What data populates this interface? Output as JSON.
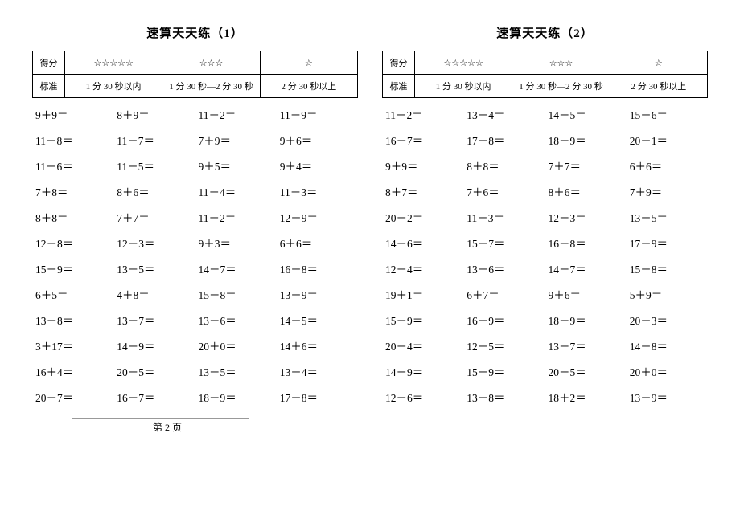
{
  "left": {
    "title_prefix": "速算天天练（",
    "title_num": "1",
    "title_suffix": "）",
    "header": {
      "row1_label": "得分",
      "row1_c1": "☆☆☆☆☆",
      "row1_c2": "☆☆☆",
      "row1_c3": "☆",
      "row2_label": "标准",
      "row2_c1": "1 分 30 秒以内",
      "row2_c2": "1 分 30 秒—2 分 30 秒",
      "row2_c3": "2 分 30 秒以上"
    },
    "rows": [
      [
        "9＋9＝",
        "8＋9＝",
        "11－2＝",
        "11－9＝"
      ],
      [
        "11－8＝",
        "11－7＝",
        "7＋9＝",
        "9＋6＝"
      ],
      [
        "11－6＝",
        "11－5＝",
        "9＋5＝",
        "9＋4＝"
      ],
      [
        "7＋8＝",
        "8＋6＝",
        "11－4＝",
        "11－3＝"
      ],
      [
        "8＋8＝",
        "7＋7＝",
        "11－2＝",
        "12－9＝"
      ],
      [
        "12－8＝",
        "12－3＝",
        "9＋3＝",
        "6＋6＝"
      ],
      [
        "15－9＝",
        "13－5＝",
        "14－7＝",
        "16－8＝"
      ],
      [
        "6＋5＝",
        "4＋8＝",
        "15－8＝",
        "13－9＝"
      ],
      [
        "13－8＝",
        "13－7＝",
        "13－6＝",
        "14－5＝"
      ],
      [
        "3＋17＝",
        "14－9＝",
        "20＋0＝",
        "14＋6＝"
      ],
      [
        "16＋4＝",
        "20－5＝",
        "13－5＝",
        "13－4＝"
      ],
      [
        "20－7＝",
        "16－7＝",
        "18－9＝",
        "17－8＝"
      ]
    ]
  },
  "right": {
    "title_prefix": "速算天天练（",
    "title_num": "2",
    "title_suffix": "）",
    "header": {
      "row1_label": "得分",
      "row1_c1": "☆☆☆☆☆",
      "row1_c2": "☆☆☆",
      "row1_c3": "☆",
      "row2_label": "标准",
      "row2_c1": "1 分 30 秒以内",
      "row2_c2": "1 分 30 秒—2 分 30 秒",
      "row2_c3": "2 分 30 秒以上"
    },
    "rows": [
      [
        "11－2＝",
        "13－4＝",
        "14－5＝",
        "15－6＝"
      ],
      [
        "16－7＝",
        "17－8＝",
        "18－9＝",
        "20－1＝"
      ],
      [
        "9＋9＝",
        "8＋8＝",
        "7＋7＝",
        "6＋6＝"
      ],
      [
        "8＋7＝",
        "7＋6＝",
        "8＋6＝",
        "7＋9＝"
      ],
      [
        "20－2＝",
        "11－3＝",
        "12－3＝",
        "13－5＝"
      ],
      [
        "14－6＝",
        "15－7＝",
        "16－8＝",
        "17－9＝"
      ],
      [
        "12－4＝",
        "13－6＝",
        "14－7＝",
        "15－8＝"
      ],
      [
        "19＋1＝",
        "6＋7＝",
        "9＋6＝",
        "5＋9＝"
      ],
      [
        "15－9＝",
        "16－9＝",
        "18－9＝",
        "20－3＝"
      ],
      [
        "20－4＝",
        "12－5＝",
        "13－7＝",
        "14－8＝"
      ],
      [
        "14－9＝",
        "15－9＝",
        "20－5＝",
        "20＋0＝"
      ],
      [
        "12－6＝",
        "13－8＝",
        "18＋2＝",
        "13－9＝"
      ]
    ]
  },
  "footer": "第 2 页"
}
